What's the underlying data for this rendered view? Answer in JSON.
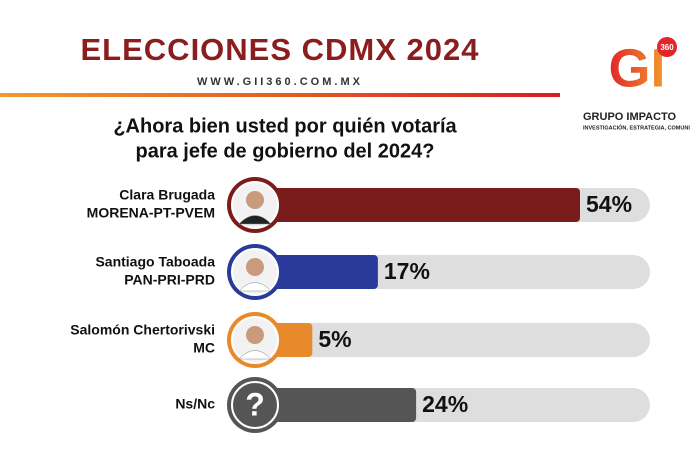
{
  "header": {
    "title": "ELECCIONES CDMX 2024",
    "website": "WWW.GII360.COM.MX",
    "logo_mark": "GI",
    "logo_badge": "360",
    "logo_name": "GRUPO IMPACTO",
    "logo_tagline": "INVESTIGACIÓN, ESTRATEGIA, COMUNICACIÓN"
  },
  "chart_data": {
    "type": "bar",
    "orientation": "horizontal",
    "title": [
      "¿Ahora bien usted por quién votaría",
      "para jefe de gobierno del 2024?"
    ],
    "categories": [
      [
        "Clara Brugada",
        "MORENA-PT-PVEM"
      ],
      [
        "Santiago Taboada",
        "PAN-PRI-PRD"
      ],
      [
        "Salomón Chertorivski",
        "MC"
      ],
      [
        "Ns/Nc"
      ]
    ],
    "values": [
      54,
      17,
      5,
      24
    ],
    "value_labels": [
      "54%",
      "17%",
      "5%",
      "24%"
    ],
    "colors": [
      "#7b1c1c",
      "#2a3a9a",
      "#e88a2c",
      "#555555"
    ],
    "unknown_icon": "?"
  }
}
